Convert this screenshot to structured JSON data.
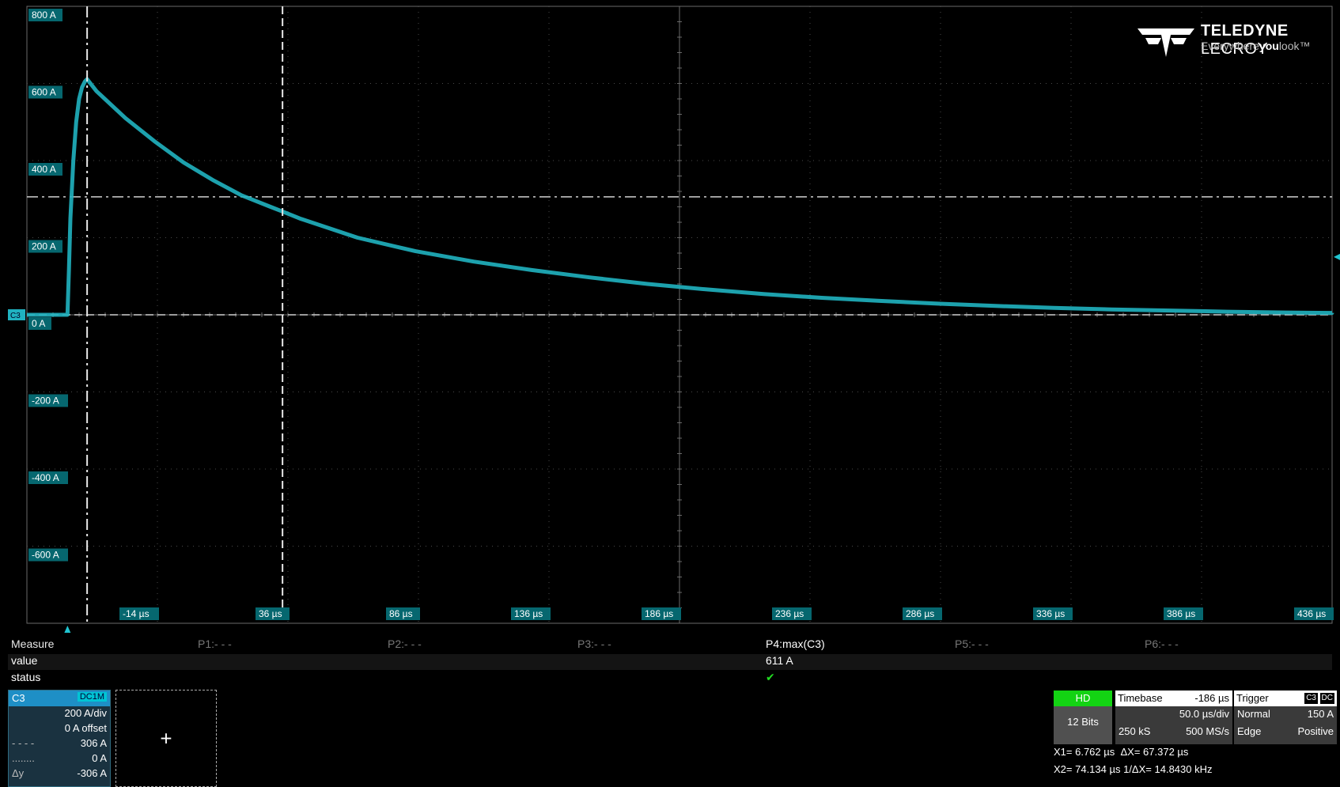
{
  "logo": {
    "brand_bold": "TELEDYNE",
    "brand_light": "LECROY",
    "tag_pre": "Everywhere",
    "tag_bold": "you",
    "tag_post": "look™"
  },
  "chart_data": {
    "type": "line",
    "title": "",
    "xlabel": "",
    "ylabel": "",
    "x_unit": "µs",
    "y_unit": "A",
    "xlim": [
      -14,
      436
    ],
    "ylim": [
      -800,
      800
    ],
    "x_ticks": [
      "-14 µs",
      "36 µs",
      "86 µs",
      "136 µs",
      "186 µs",
      "236 µs",
      "286 µs",
      "336 µs",
      "386 µs",
      "436 µs"
    ],
    "y_ticks": [
      "800 A",
      "600 A",
      "400 A",
      "200 A",
      "0 A",
      "-200 A",
      "-400 A",
      "-600 A"
    ],
    "grid": true,
    "series": [
      {
        "name": "C3",
        "color": "#20b2c0",
        "x": [
          -14,
          0,
          0.5,
          1,
          2,
          3,
          4,
          5,
          6,
          6.762,
          10,
          20,
          30,
          40,
          50,
          60,
          70,
          74.134,
          80,
          100,
          120,
          140,
          160,
          180,
          200,
          220,
          240,
          260,
          280,
          300,
          320,
          340,
          360,
          380,
          400,
          420,
          436
        ],
        "y": [
          0,
          0,
          120,
          250,
          400,
          500,
          560,
          590,
          605,
          611,
          580,
          510,
          450,
          395,
          350,
          310,
          280,
          268,
          250,
          200,
          165,
          138,
          116,
          97,
          80,
          66,
          54,
          44,
          36,
          29,
          23,
          18,
          14,
          11,
          8,
          6,
          5
        ]
      }
    ],
    "cursors": {
      "vertical": [
        6.762,
        74.134
      ],
      "horizontal": [
        306,
        0
      ]
    },
    "trigger_level": 150
  },
  "measure": {
    "row_labels": [
      "Measure",
      "value",
      "status"
    ],
    "slots": [
      "P1:- - -",
      "P2:- - -",
      "P3:- - -",
      "P4:max(C3)",
      "P5:- - -",
      "P6:- - -"
    ],
    "p4_value": "611 A",
    "p4_status": "✔"
  },
  "channel": {
    "name": "C3",
    "coupling": "DC1M",
    "scale": "200 A/div",
    "offset": "0 A offset",
    "cur1_sym": "- - - -",
    "cur1_val": "306 A",
    "cur2_sym": "........",
    "cur2_val": "0 A",
    "dy_label": "Δy",
    "dy_val": "-306 A",
    "trace_label": "C3",
    "add_symbol": "+"
  },
  "acq": {
    "hd": "HD",
    "bits": "12 Bits"
  },
  "timebase": {
    "label": "Timebase",
    "delay": "-186 µs",
    "per_div": "50.0 µs/div",
    "samples": "250 kS",
    "rate": "500 MS/s"
  },
  "trigger": {
    "label": "Trigger",
    "src": "C3",
    "coupling": "DC",
    "mode": "Normal",
    "level": "150 A",
    "type": "Edge",
    "slope": "Positive"
  },
  "cursor_readout": {
    "x1": "X1= 6.762 µs",
    "dx": "ΔX=    67.372 µs",
    "x2": "X2= 74.134 µs",
    "inv_dx": "1/ΔX= 14.8430 kHz"
  }
}
